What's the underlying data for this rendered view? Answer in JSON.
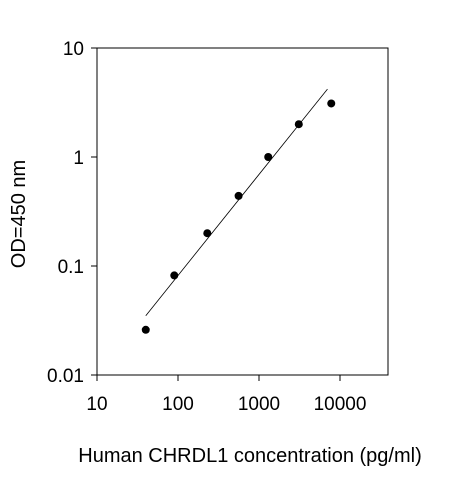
{
  "chart_data": {
    "type": "scatter",
    "title": "",
    "xlabel": "Human CHRDL1 concentration (pg/ml)",
    "ylabel": "OD=450 nm",
    "xscale": "log",
    "yscale": "log",
    "xlim": [
      10,
      40000
    ],
    "ylim": [
      0.01,
      10
    ],
    "x_ticks": [
      10,
      100,
      1000,
      10000
    ],
    "x_tick_labels": [
      "10",
      "100",
      "1000",
      "10000"
    ],
    "y_ticks": [
      0.01,
      0.1,
      1,
      10
    ],
    "y_tick_labels": [
      "0.01",
      "0.1",
      "1",
      "10"
    ],
    "grid": false,
    "legend": "none",
    "series": [
      {
        "points": [
          {
            "x": 40,
            "y": 0.026
          },
          {
            "x": 90,
            "y": 0.082
          },
          {
            "x": 230,
            "y": 0.2
          },
          {
            "x": 560,
            "y": 0.44
          },
          {
            "x": 1300,
            "y": 1.0
          },
          {
            "x": 3100,
            "y": 2.0
          },
          {
            "x": 7800,
            "y": 3.1
          }
        ],
        "marker": "circle",
        "color": "#000000"
      }
    ],
    "fit_line": {
      "x": [
        40,
        7000
      ],
      "y": [
        0.035,
        4.2
      ],
      "color": "#000000"
    }
  }
}
